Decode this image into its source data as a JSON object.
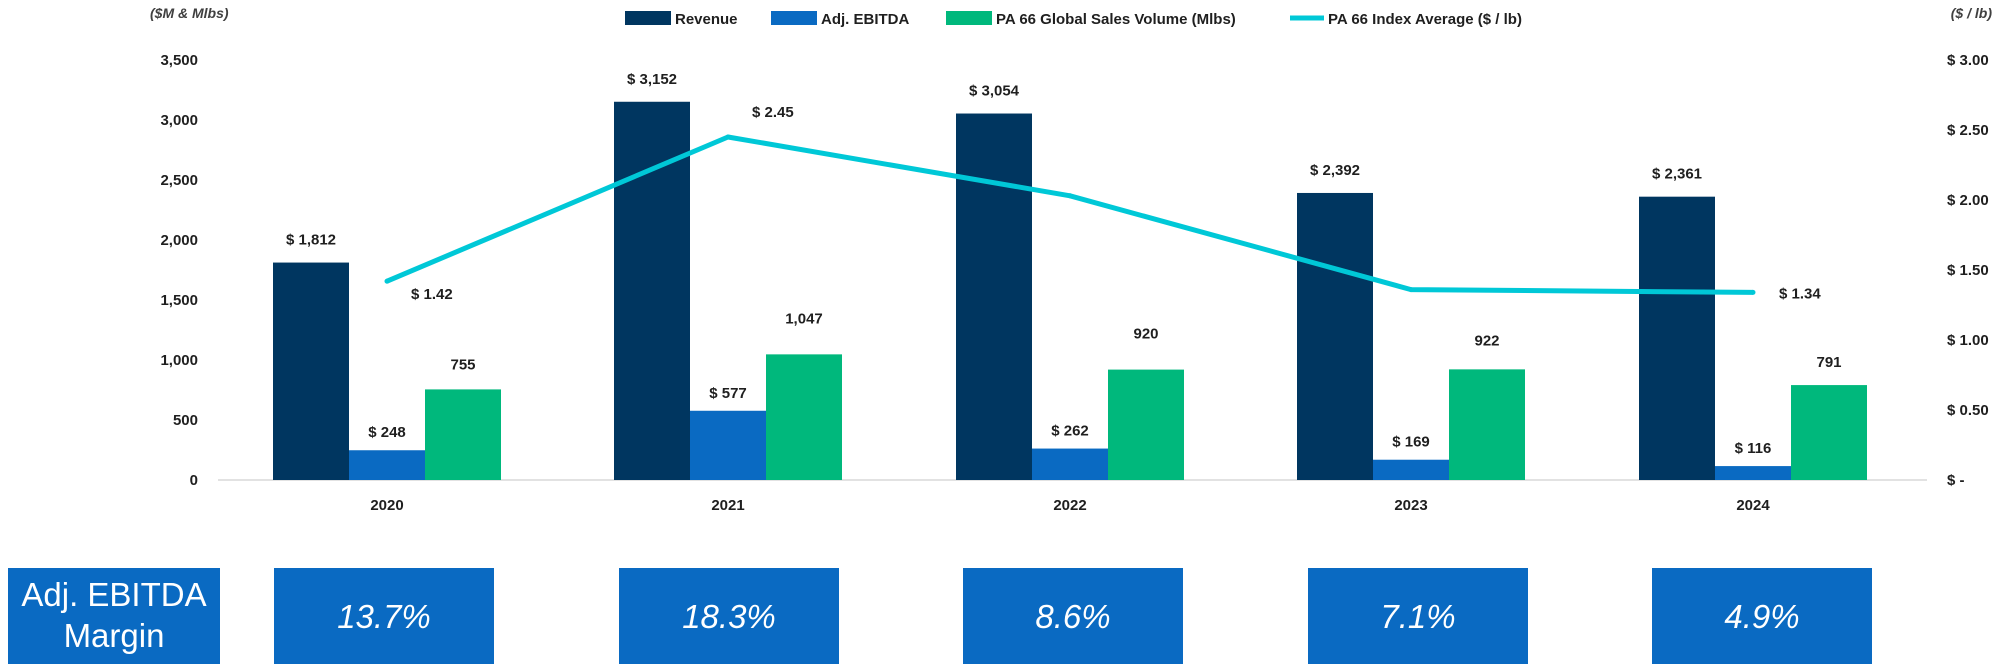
{
  "chart_data": {
    "type": "bar",
    "categories": [
      "2020",
      "2021",
      "2022",
      "2023",
      "2024"
    ],
    "series": [
      {
        "name": "Revenue",
        "color": "#003660",
        "values": [
          1812,
          3152,
          3054,
          2392,
          2361
        ],
        "labels": [
          "$ 1,812",
          "$ 3,152",
          "$ 3,054",
          "$ 2,392",
          "$ 2,361"
        ]
      },
      {
        "name": "Adj. EBITDA",
        "color": "#0a6ac2",
        "values": [
          248,
          577,
          262,
          169,
          116
        ],
        "labels": [
          "$ 248",
          "$ 577",
          "$ 262",
          "$ 169",
          "$ 116"
        ]
      },
      {
        "name": "PA 66 Global Sales Volume (Mlbs)",
        "color": "#00b87c",
        "values": [
          755,
          1047,
          920,
          922,
          791
        ],
        "labels": [
          "755",
          "1,047",
          "920",
          "922",
          "791"
        ]
      }
    ],
    "line_series": {
      "name": "PA 66 Index Average ($ / lb)",
      "color": "#00c8d7",
      "axis": "right",
      "values": [
        1.42,
        2.45,
        2.03,
        1.36,
        1.34
      ],
      "labels": [
        "$ 1.42",
        "$ 2.45",
        "",
        "",
        "$ 1.34"
      ]
    },
    "y_left": {
      "unit_label": "($M & Mlbs)",
      "ylim": [
        0,
        3500
      ],
      "ticks": [
        "0",
        "500",
        "1,000",
        "1,500",
        "2,000",
        "2,500",
        "3,000",
        "3,500"
      ]
    },
    "y_right": {
      "unit_label": "($ / lb)",
      "ylim": [
        0,
        3.0
      ],
      "ticks": [
        "$ -",
        "$ 0.50",
        "$ 1.00",
        "$ 1.50",
        "$ 2.00",
        "$ 2.50",
        "$ 3.00"
      ]
    },
    "legend_position": "top-center",
    "grid": false
  },
  "margin_panel": {
    "title_lines": [
      "Adj. EBITDA",
      "Margin"
    ],
    "values": [
      "13.7%",
      "18.3%",
      "8.6%",
      "7.1%",
      "4.9%"
    ],
    "box_color": "#0a6ac2"
  }
}
